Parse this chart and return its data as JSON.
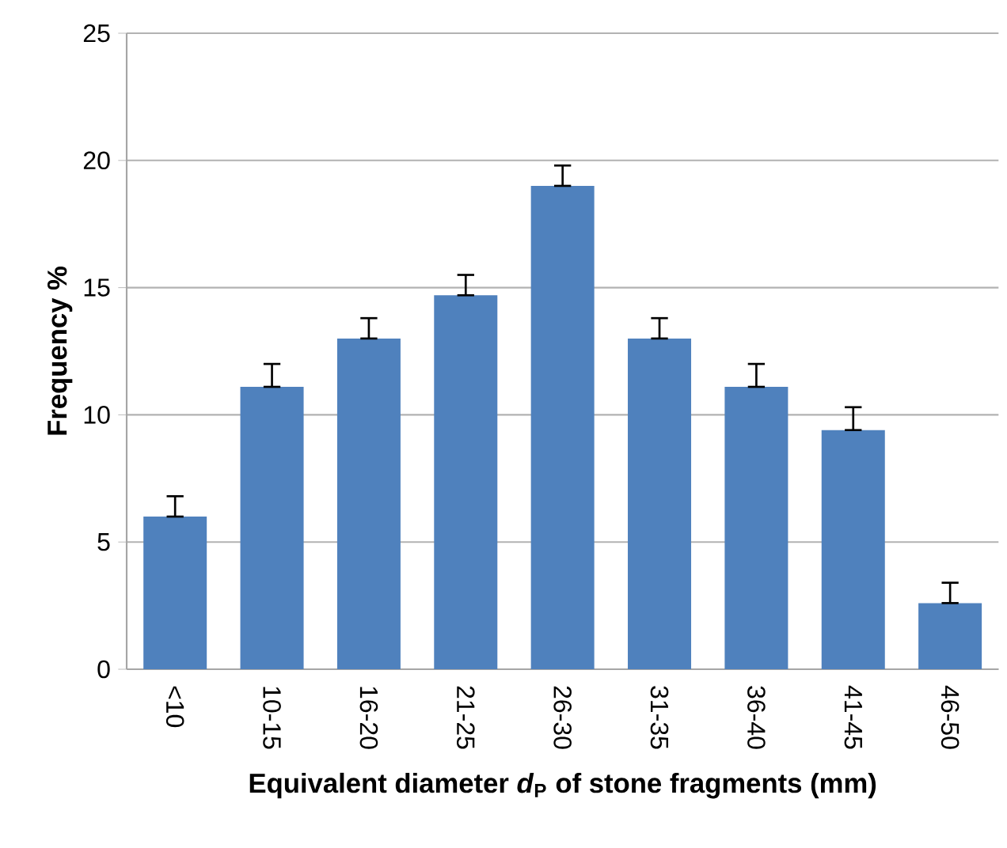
{
  "chart_data": {
    "type": "bar",
    "xlabel": "Equivalent diameter *d*$_{P}$ of stone fragments (mm)",
    "ylabel": "Frequency %",
    "categories": [
      "<10",
      "10-15",
      "16-20",
      "21-25",
      "26-30",
      "31-35",
      "36-40",
      "41-45",
      "46-50"
    ],
    "values": [
      6.0,
      11.1,
      13.0,
      14.7,
      19.0,
      13.0,
      11.1,
      9.4,
      2.6
    ],
    "errors": [
      [
        6.0,
        6.8
      ],
      [
        11.1,
        12.0
      ],
      [
        13.0,
        13.8
      ],
      [
        14.7,
        15.5
      ],
      [
        19.0,
        19.8
      ],
      [
        13.0,
        13.8
      ],
      [
        11.1,
        12.0
      ],
      [
        9.4,
        10.3
      ],
      [
        2.6,
        3.4
      ]
    ],
    "color": "#4f81bd",
    "ylim": [
      0,
      25
    ],
    "yticks": [
      0,
      5,
      10,
      15,
      20,
      25
    ],
    "grid": "y"
  }
}
